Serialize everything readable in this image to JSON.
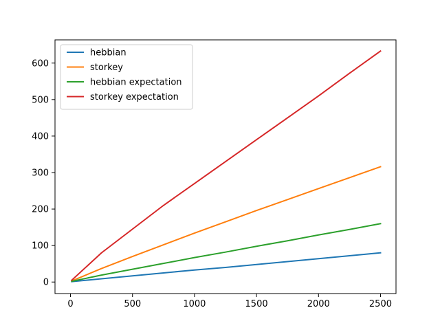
{
  "chart_data": {
    "type": "line",
    "title": "",
    "xlabel": "",
    "ylabel": "",
    "xlim": [
      -125,
      2625
    ],
    "ylim": [
      -31.6,
      663.6
    ],
    "xticks": [
      0,
      500,
      1000,
      1500,
      2000,
      2500
    ],
    "yticks": [
      0,
      100,
      200,
      300,
      400,
      500,
      600
    ],
    "grid": false,
    "legend_position": "upper left",
    "series": [
      {
        "name": "hebbian",
        "color": "#1f77b4",
        "x": [
          10,
          250,
          500,
          750,
          1000,
          1250,
          1500,
          1750,
          2000,
          2250,
          2500
        ],
        "y": [
          1,
          9,
          17,
          25,
          33,
          40,
          48,
          56,
          64,
          72,
          80
        ]
      },
      {
        "name": "storkey",
        "color": "#ff7f0e",
        "x": [
          10,
          250,
          500,
          750,
          1000,
          1250,
          1500,
          1750,
          2000,
          2250,
          2500
        ],
        "y": [
          3,
          37,
          70,
          102,
          134,
          165,
          196,
          226,
          256,
          286,
          316
        ]
      },
      {
        "name": "hebbian expectation",
        "color": "#2ca02c",
        "x": [
          10,
          250,
          500,
          750,
          1000,
          1250,
          1500,
          1750,
          2000,
          2250,
          2500
        ],
        "y": [
          2,
          19,
          35,
          51,
          67,
          82,
          98,
          113,
          129,
          144,
          160
        ]
      },
      {
        "name": "storkey expectation",
        "color": "#d62728",
        "x": [
          10,
          250,
          500,
          750,
          1000,
          1250,
          1500,
          1750,
          2000,
          2250,
          2500
        ],
        "y": [
          5,
          80,
          145,
          210,
          270,
          330,
          390,
          450,
          510,
          572,
          633
        ]
      }
    ]
  }
}
